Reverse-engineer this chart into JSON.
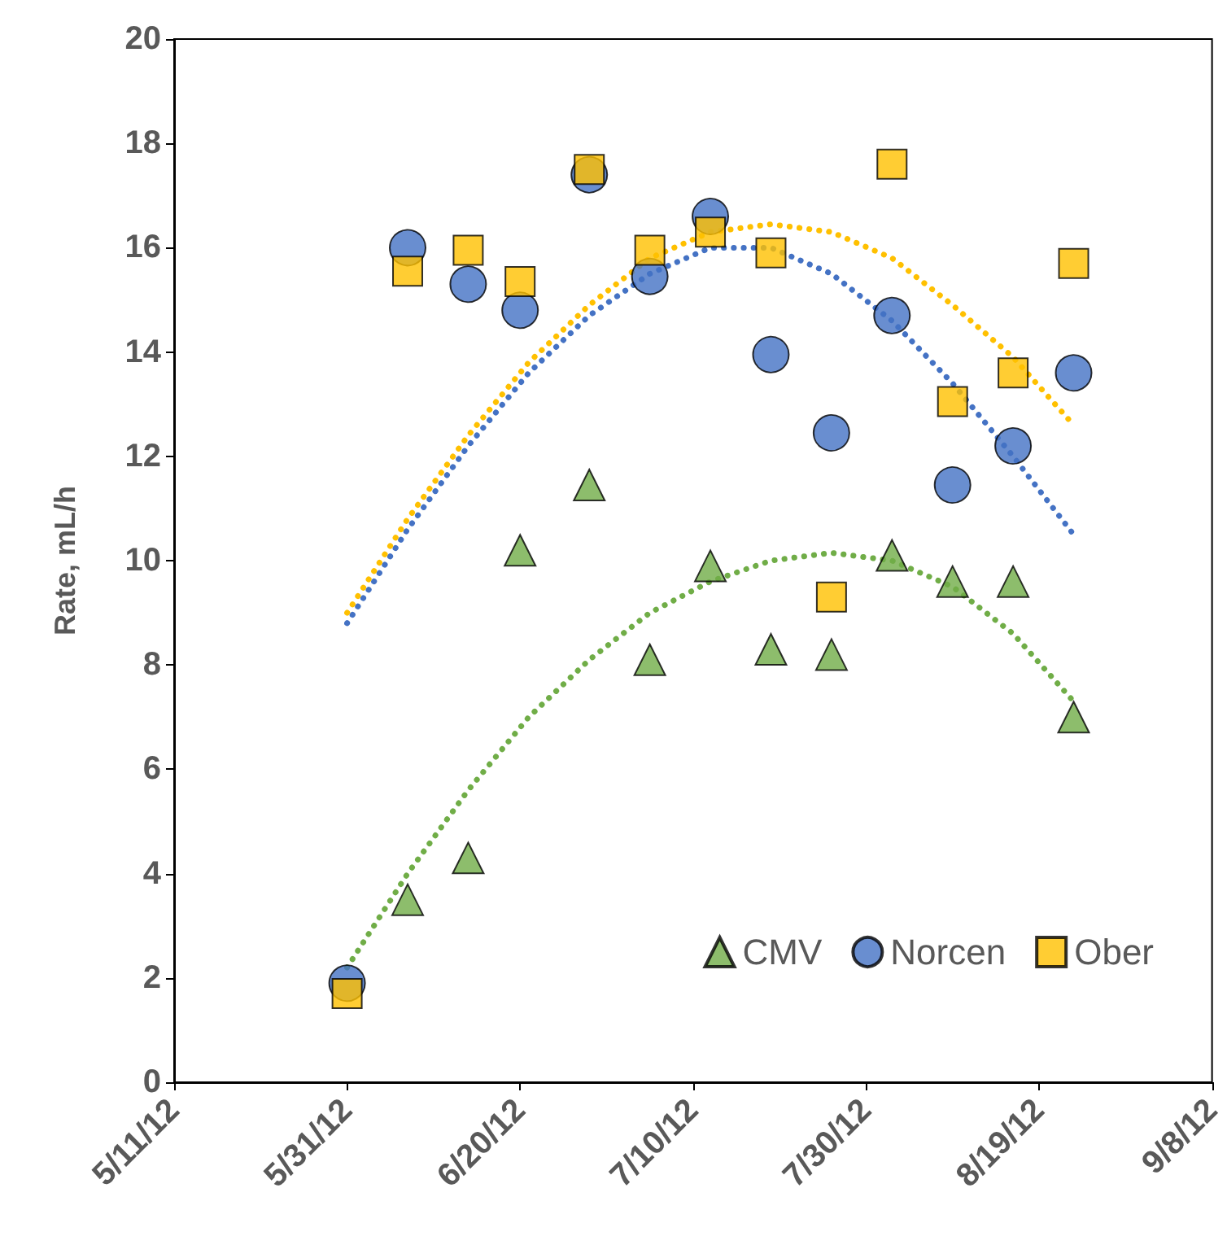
{
  "chart_data": {
    "type": "scatter",
    "ylabel": "Rate, mL/h",
    "x": [
      "2012-05-31",
      "2012-06-07",
      "2012-06-14",
      "2012-06-20",
      "2012-06-28",
      "2012-07-05",
      "2012-07-12",
      "2012-07-19",
      "2012-07-26",
      "2012-08-02",
      "2012-08-09",
      "2012-08-16",
      "2012-08-23"
    ],
    "series": [
      {
        "name": "CMV",
        "color": "#70ad47",
        "marker": "triangle",
        "values": [
          null,
          3.5,
          4.3,
          10.2,
          11.45,
          8.1,
          9.9,
          8.3,
          8.2,
          10.1,
          9.6,
          9.6,
          7.0
        ]
      },
      {
        "name": "Norcen",
        "color": "#4472c4",
        "marker": "circle",
        "values": [
          1.9,
          16.0,
          15.3,
          14.8,
          17.4,
          15.45,
          16.6,
          13.95,
          12.45,
          14.7,
          11.45,
          12.2,
          13.6
        ]
      },
      {
        "name": "Ober",
        "color": "#ffc000",
        "marker": "square",
        "values": [
          1.7,
          15.55,
          15.95,
          15.35,
          17.5,
          15.95,
          16.3,
          15.9,
          9.3,
          17.6,
          13.05,
          13.6,
          15.7
        ]
      },
      {
        "type": "line",
        "color": "#70ad47",
        "line_style": "dotted",
        "marker": "none",
        "x": [
          "2012-05-31",
          "2012-06-07",
          "2012-06-14",
          "2012-06-21",
          "2012-06-28",
          "2012-07-05",
          "2012-07-12",
          "2012-07-19",
          "2012-07-26",
          "2012-08-02",
          "2012-08-09",
          "2012-08-16",
          "2012-08-23"
        ],
        "values": [
          2.2,
          4.0,
          5.6,
          7.0,
          8.1,
          9.0,
          9.6,
          10.0,
          10.15,
          10.0,
          9.5,
          8.6,
          7.3
        ]
      },
      {
        "type": "line",
        "color": "#4472c4",
        "line_style": "dotted",
        "marker": "none",
        "x": [
          "2012-05-31",
          "2012-06-07",
          "2012-06-14",
          "2012-06-21",
          "2012-06-28",
          "2012-07-05",
          "2012-07-12",
          "2012-07-19",
          "2012-07-26",
          "2012-08-02",
          "2012-08-09",
          "2012-08-16",
          "2012-08-23"
        ],
        "values": [
          8.8,
          10.6,
          12.2,
          13.6,
          14.7,
          15.5,
          16.0,
          16.0,
          15.5,
          14.6,
          13.4,
          12.0,
          10.5
        ]
      },
      {
        "type": "line",
        "color": "#ffc000",
        "line_style": "dotted",
        "marker": "none",
        "x": [
          "2012-05-31",
          "2012-06-07",
          "2012-06-14",
          "2012-06-21",
          "2012-06-28",
          "2012-07-05",
          "2012-07-12",
          "2012-07-19",
          "2012-07-26",
          "2012-08-02",
          "2012-08-09",
          "2012-08-16",
          "2012-08-23"
        ],
        "values": [
          9.0,
          10.8,
          12.4,
          13.8,
          14.9,
          15.8,
          16.3,
          16.45,
          16.3,
          15.8,
          14.9,
          13.9,
          12.6
        ]
      }
    ],
    "xlim": [
      "2012-05-11",
      "2012-09-08"
    ],
    "xticks": [
      {
        "value": "2012-05-11",
        "label": "5/11/12"
      },
      {
        "value": "2012-05-31",
        "label": "5/31/12"
      },
      {
        "value": "2012-06-20",
        "label": "6/20/12"
      },
      {
        "value": "2012-07-10",
        "label": "7/10/12"
      },
      {
        "value": "2012-07-30",
        "label": "7/30/12"
      },
      {
        "value": "2012-08-19",
        "label": "8/19/12"
      },
      {
        "value": "2012-09-08",
        "label": "9/8/12"
      }
    ],
    "ylim": [
      0,
      20
    ],
    "yticks": [
      0,
      2,
      4,
      6,
      8,
      10,
      12,
      14,
      16,
      18,
      20
    ],
    "grid": false,
    "legend": "bottom right"
  }
}
